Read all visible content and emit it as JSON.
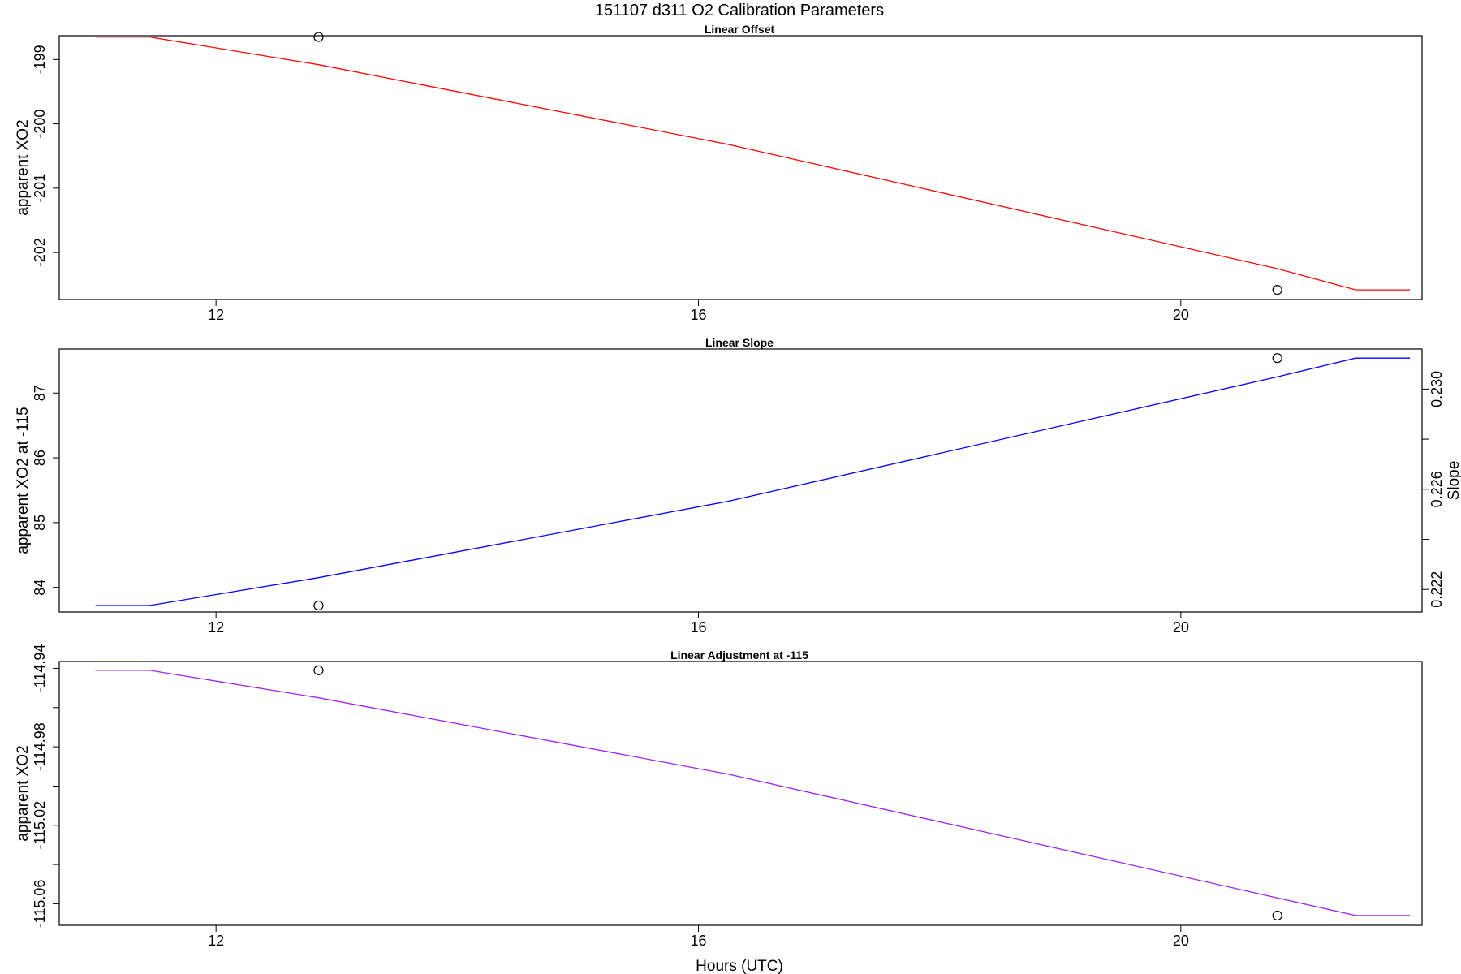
{
  "figure": {
    "title": "151107   d311   O2 Calibration Parameters",
    "xlabel": "Hours (UTC)"
  },
  "chart_data": [
    {
      "type": "line",
      "title": "Linear Offset",
      "xlabel": "Hours (UTC)",
      "ylabel": "apparent XO2",
      "xlim": [
        10.7,
        22.0
      ],
      "ylim": [
        -202.73,
        -198.63
      ],
      "xticks": [
        12,
        16,
        20
      ],
      "yticks": [
        -199,
        -200,
        -201,
        -202
      ],
      "ytick_labels": [
        "-199",
        "-200",
        "-201",
        "-202"
      ],
      "grid": false,
      "series": [
        {
          "color": "#ff0000",
          "x": [
            11.0,
            11.45,
            12.85,
            16.25,
            20.8,
            21.45,
            21.9
          ],
          "y": [
            -198.65,
            -198.65,
            -199.08,
            -200.32,
            -202.25,
            -202.58,
            -202.58
          ]
        }
      ],
      "points": {
        "x": [
          12.85,
          20.8
        ],
        "y": [
          -198.65,
          -202.58
        ]
      }
    },
    {
      "type": "line",
      "title": "Linear Slope",
      "xlabel": "Hours (UTC)",
      "ylabel": "apparent XO2 at -115",
      "ylabel_right": "Slope",
      "xlim": [
        10.7,
        22.0
      ],
      "ylim": [
        83.62,
        87.68
      ],
      "xticks": [
        12,
        16,
        20
      ],
      "yticks": [
        84,
        85,
        86,
        87
      ],
      "ytick_labels": [
        "84",
        "85",
        "86",
        "87"
      ],
      "right_ylim": [
        0.2211,
        0.2316
      ],
      "right_yticks": [
        0.222,
        0.224,
        0.226,
        0.228,
        0.23
      ],
      "right_ytick_labels": [
        "0.222",
        "",
        "0.226",
        "",
        "0.230"
      ],
      "grid": false,
      "series": [
        {
          "color": "#0000ff",
          "x": [
            11.0,
            11.45,
            12.85,
            16.25,
            20.8,
            21.45,
            21.9
          ],
          "y": [
            83.72,
            83.72,
            84.15,
            85.33,
            87.25,
            87.54,
            87.54
          ]
        }
      ],
      "points": {
        "x": [
          12.85,
          20.8
        ],
        "y": [
          83.72,
          87.54
        ]
      }
    },
    {
      "type": "line",
      "title": "Linear Adjustment at -115",
      "xlabel": "Hours (UTC)",
      "ylabel": "apparent XO2",
      "xlim": [
        10.7,
        22.0
      ],
      "ylim": [
        -115.071,
        -114.9365
      ],
      "xticks": [
        12,
        16,
        20
      ],
      "yticks": [
        -114.94,
        -114.96,
        -114.98,
        -115.0,
        -115.02,
        -115.04,
        -115.06
      ],
      "ytick_labels": [
        "-114.94",
        "",
        "-114.98",
        "",
        "-115.02",
        "",
        "-115.06"
      ],
      "grid": false,
      "series": [
        {
          "color": "#a020f0",
          "x": [
            11.0,
            11.45,
            12.85,
            16.25,
            20.8,
            21.45,
            21.9
          ],
          "y": [
            -114.941,
            -114.941,
            -114.955,
            -114.994,
            -115.057,
            -115.066,
            -115.066
          ]
        }
      ],
      "points": {
        "x": [
          12.85,
          20.8
        ],
        "y": [
          -114.941,
          -115.066
        ]
      }
    }
  ]
}
